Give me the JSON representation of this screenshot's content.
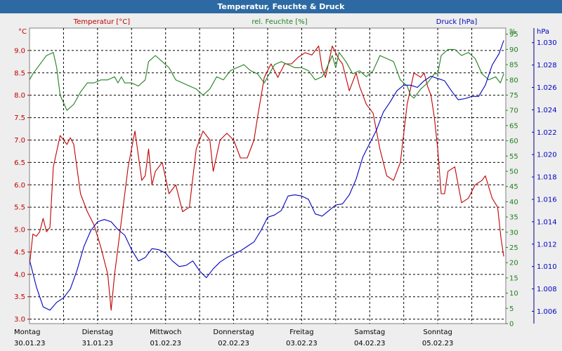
{
  "window": {
    "title": "Temperatur, Feuchte & Druck"
  },
  "colors": {
    "temp": "#c00000",
    "hum": "#208020",
    "pres": "#0000c0",
    "titlebar": "#2d6aa3"
  },
  "chart_data": {
    "type": "line",
    "title": "Temperatur, Feuchte & Druck",
    "x_range": [
      0,
      7
    ],
    "x_labels": [
      {
        "day": "Montag",
        "date": "30.01.23"
      },
      {
        "day": "Dienstag",
        "date": "31.01.23"
      },
      {
        "day": "Mittwoch",
        "date": "01.02.23"
      },
      {
        "day": "Donnerstag",
        "date": "02.02.23"
      },
      {
        "day": "Freitag",
        "date": "03.02.23"
      },
      {
        "day": "Samstag",
        "date": "04.02.23"
      },
      {
        "day": "Sonntag",
        "date": "05.02.23"
      }
    ],
    "axes": {
      "temp": {
        "unit": "°C",
        "label": "Temperatur [°C]",
        "range": [
          2.9,
          9.5
        ],
        "ticks": [
          "3.0",
          "3.5",
          "4.0",
          "4.5",
          "5.0",
          "5.5",
          "6.0",
          "6.5",
          "7.0",
          "7.5",
          "8.0",
          "8.5",
          "9.0"
        ]
      },
      "hum": {
        "unit": "%",
        "label": "rel. Feuchte [%]",
        "range": [
          0,
          97
        ],
        "ticks": [
          "0",
          "5",
          "10",
          "15",
          "20",
          "25",
          "30",
          "35",
          "40",
          "45",
          "50",
          "55",
          "60",
          "65",
          "70",
          "75",
          "80",
          "85",
          "90",
          "95"
        ]
      },
      "pres": {
        "unit": "hPa",
        "label": "Druck [hPa]",
        "range": [
          1.0049,
          1.0313
        ],
        "ticks": [
          "1.006",
          "1.008",
          "1.010",
          "1.012",
          "1.014",
          "1.016",
          "1.018",
          "1.020",
          "1.022",
          "1.024",
          "1.026",
          "1.028",
          "1.030"
        ]
      }
    },
    "series": [
      {
        "name": "Temperatur [°C]",
        "axis": "temp",
        "points": [
          [
            0.0,
            4.2
          ],
          [
            0.05,
            4.9
          ],
          [
            0.1,
            4.85
          ],
          [
            0.15,
            4.95
          ],
          [
            0.2,
            5.25
          ],
          [
            0.25,
            4.95
          ],
          [
            0.3,
            5.05
          ],
          [
            0.35,
            6.4
          ],
          [
            0.45,
            7.1
          ],
          [
            0.55,
            6.9
          ],
          [
            0.6,
            7.05
          ],
          [
            0.65,
            6.9
          ],
          [
            0.75,
            5.8
          ],
          [
            0.85,
            5.4
          ],
          [
            0.95,
            5.1
          ],
          [
            1.05,
            4.6
          ],
          [
            1.15,
            4.0
          ],
          [
            1.2,
            3.2
          ],
          [
            1.25,
            4.0
          ],
          [
            1.35,
            5.2
          ],
          [
            1.45,
            6.4
          ],
          [
            1.55,
            7.2
          ],
          [
            1.65,
            6.1
          ],
          [
            1.7,
            6.2
          ],
          [
            1.75,
            6.8
          ],
          [
            1.8,
            6.0
          ],
          [
            1.85,
            6.3
          ],
          [
            1.95,
            6.5
          ],
          [
            2.05,
            5.8
          ],
          [
            2.15,
            6.0
          ],
          [
            2.25,
            5.4
          ],
          [
            2.35,
            5.5
          ],
          [
            2.45,
            6.8
          ],
          [
            2.55,
            7.2
          ],
          [
            2.65,
            7.0
          ],
          [
            2.7,
            6.3
          ],
          [
            2.8,
            7.0
          ],
          [
            2.9,
            7.15
          ],
          [
            3.0,
            7.0
          ],
          [
            3.1,
            6.6
          ],
          [
            3.2,
            6.6
          ],
          [
            3.3,
            7.0
          ],
          [
            3.35,
            7.5
          ],
          [
            3.45,
            8.4
          ],
          [
            3.55,
            8.7
          ],
          [
            3.65,
            8.4
          ],
          [
            3.75,
            8.7
          ],
          [
            3.85,
            8.7
          ],
          [
            3.95,
            8.85
          ],
          [
            4.05,
            8.95
          ],
          [
            4.15,
            8.9
          ],
          [
            4.25,
            9.1
          ],
          [
            4.3,
            8.6
          ],
          [
            4.35,
            8.4
          ],
          [
            4.45,
            9.1
          ],
          [
            4.55,
            8.8
          ],
          [
            4.6,
            8.7
          ],
          [
            4.7,
            8.1
          ],
          [
            4.8,
            8.5
          ],
          [
            4.85,
            8.2
          ],
          [
            4.95,
            7.8
          ],
          [
            5.05,
            7.6
          ],
          [
            5.15,
            6.8
          ],
          [
            5.25,
            6.2
          ],
          [
            5.35,
            6.1
          ],
          [
            5.45,
            6.5
          ],
          [
            5.55,
            7.8
          ],
          [
            5.65,
            8.5
          ],
          [
            5.75,
            8.4
          ],
          [
            5.8,
            8.5
          ],
          [
            5.85,
            8.2
          ],
          [
            5.9,
            8.0
          ],
          [
            5.95,
            7.5
          ],
          [
            6.0,
            6.8
          ],
          [
            6.05,
            5.8
          ],
          [
            6.1,
            5.8
          ],
          [
            6.15,
            6.3
          ],
          [
            6.25,
            6.4
          ],
          [
            6.35,
            5.6
          ],
          [
            6.45,
            5.7
          ],
          [
            6.55,
            6.0
          ],
          [
            6.65,
            6.1
          ],
          [
            6.7,
            6.2
          ],
          [
            6.8,
            5.7
          ],
          [
            6.88,
            5.5
          ],
          [
            6.93,
            4.8
          ],
          [
            6.97,
            4.4
          ]
        ]
      },
      {
        "name": "rel. Feuchte [%]",
        "axis": "hum",
        "points": [
          [
            0.0,
            80
          ],
          [
            0.05,
            82
          ],
          [
            0.15,
            85
          ],
          [
            0.25,
            88
          ],
          [
            0.35,
            89
          ],
          [
            0.4,
            84
          ],
          [
            0.45,
            75
          ],
          [
            0.55,
            70
          ],
          [
            0.65,
            72
          ],
          [
            0.75,
            76
          ],
          [
            0.85,
            79
          ],
          [
            0.95,
            79
          ],
          [
            1.05,
            80
          ],
          [
            1.15,
            80
          ],
          [
            1.25,
            81
          ],
          [
            1.3,
            79
          ],
          [
            1.35,
            81
          ],
          [
            1.4,
            79
          ],
          [
            1.5,
            79
          ],
          [
            1.6,
            78
          ],
          [
            1.7,
            80
          ],
          [
            1.75,
            86
          ],
          [
            1.85,
            88
          ],
          [
            1.95,
            86
          ],
          [
            2.05,
            84
          ],
          [
            2.15,
            80
          ],
          [
            2.25,
            79
          ],
          [
            2.35,
            78
          ],
          [
            2.45,
            77
          ],
          [
            2.55,
            75
          ],
          [
            2.65,
            77
          ],
          [
            2.75,
            81
          ],
          [
            2.85,
            80
          ],
          [
            2.95,
            83
          ],
          [
            3.05,
            84
          ],
          [
            3.15,
            85
          ],
          [
            3.25,
            83
          ],
          [
            3.35,
            82
          ],
          [
            3.45,
            79
          ],
          [
            3.5,
            81
          ],
          [
            3.6,
            85
          ],
          [
            3.7,
            86
          ],
          [
            3.8,
            85
          ],
          [
            3.9,
            84
          ],
          [
            4.0,
            84
          ],
          [
            4.1,
            83
          ],
          [
            4.2,
            80
          ],
          [
            4.3,
            81
          ],
          [
            4.35,
            83
          ],
          [
            4.45,
            88
          ],
          [
            4.5,
            84
          ],
          [
            4.55,
            89
          ],
          [
            4.65,
            86
          ],
          [
            4.75,
            82
          ],
          [
            4.85,
            83
          ],
          [
            4.95,
            81
          ],
          [
            5.05,
            83
          ],
          [
            5.15,
            88
          ],
          [
            5.25,
            87
          ],
          [
            5.35,
            86
          ],
          [
            5.45,
            80
          ],
          [
            5.55,
            78
          ],
          [
            5.6,
            75
          ],
          [
            5.65,
            74
          ],
          [
            5.75,
            77
          ],
          [
            5.85,
            79
          ],
          [
            5.95,
            82
          ],
          [
            6.0,
            82
          ],
          [
            6.05,
            88
          ],
          [
            6.15,
            90
          ],
          [
            6.25,
            90
          ],
          [
            6.35,
            88
          ],
          [
            6.45,
            89
          ],
          [
            6.55,
            87
          ],
          [
            6.65,
            82
          ],
          [
            6.75,
            80
          ],
          [
            6.85,
            81
          ],
          [
            6.92,
            79
          ],
          [
            6.97,
            82
          ]
        ]
      },
      {
        "name": "Druck [hPa]",
        "axis": "pres",
        "points": [
          [
            0.0,
            1.0106
          ],
          [
            0.1,
            1.0082
          ],
          [
            0.2,
            1.0064
          ],
          [
            0.3,
            1.0061
          ],
          [
            0.4,
            1.0068
          ],
          [
            0.5,
            1.0072
          ],
          [
            0.6,
            1.008
          ],
          [
            0.7,
            1.0097
          ],
          [
            0.8,
            1.0118
          ],
          [
            0.9,
            1.0132
          ],
          [
            1.0,
            1.014
          ],
          [
            1.1,
            1.0142
          ],
          [
            1.2,
            1.014
          ],
          [
            1.3,
            1.0133
          ],
          [
            1.4,
            1.0128
          ],
          [
            1.5,
            1.0115
          ],
          [
            1.6,
            1.0105
          ],
          [
            1.7,
            1.0108
          ],
          [
            1.8,
            1.0116
          ],
          [
            1.9,
            1.0115
          ],
          [
            2.0,
            1.0112
          ],
          [
            2.1,
            1.0105
          ],
          [
            2.2,
            1.01
          ],
          [
            2.3,
            1.0101
          ],
          [
            2.4,
            1.0105
          ],
          [
            2.5,
            1.0096
          ],
          [
            2.6,
            1.009
          ],
          [
            2.7,
            1.0098
          ],
          [
            2.8,
            1.0104
          ],
          [
            2.9,
            1.0108
          ],
          [
            3.0,
            1.0111
          ],
          [
            3.1,
            1.0114
          ],
          [
            3.2,
            1.0118
          ],
          [
            3.3,
            1.0122
          ],
          [
            3.4,
            1.0132
          ],
          [
            3.5,
            1.0144
          ],
          [
            3.6,
            1.0146
          ],
          [
            3.7,
            1.015
          ],
          [
            3.8,
            1.0163
          ],
          [
            3.9,
            1.0164
          ],
          [
            4.0,
            1.0163
          ],
          [
            4.1,
            1.016
          ],
          [
            4.2,
            1.0147
          ],
          [
            4.3,
            1.0145
          ],
          [
            4.4,
            1.015
          ],
          [
            4.5,
            1.0155
          ],
          [
            4.6,
            1.0156
          ],
          [
            4.7,
            1.0164
          ],
          [
            4.8,
            1.0178
          ],
          [
            4.9,
            1.0198
          ],
          [
            5.0,
            1.021
          ],
          [
            5.1,
            1.0222
          ],
          [
            5.2,
            1.0238
          ],
          [
            5.3,
            1.0247
          ],
          [
            5.4,
            1.0257
          ],
          [
            5.5,
            1.0262
          ],
          [
            5.6,
            1.0262
          ],
          [
            5.7,
            1.026
          ],
          [
            5.8,
            1.0266
          ],
          [
            5.9,
            1.027
          ],
          [
            6.0,
            1.0268
          ],
          [
            6.1,
            1.0266
          ],
          [
            6.2,
            1.0257
          ],
          [
            6.3,
            1.0249
          ],
          [
            6.4,
            1.025
          ],
          [
            6.5,
            1.0252
          ],
          [
            6.6,
            1.0252
          ],
          [
            6.7,
            1.0262
          ],
          [
            6.8,
            1.028
          ],
          [
            6.9,
            1.029
          ],
          [
            6.97,
            1.0302
          ]
        ]
      }
    ],
    "grid": true
  }
}
